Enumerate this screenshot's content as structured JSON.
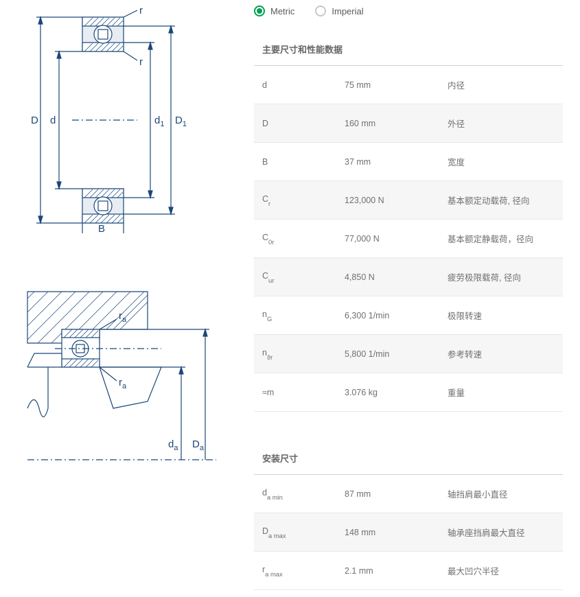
{
  "units": {
    "metric": "Metric",
    "imperial": "Imperial",
    "selected": "metric"
  },
  "sections": {
    "main": {
      "heading": "主要尺寸和性能数据",
      "rows": [
        {
          "sym": "d",
          "sub": "",
          "val": "75 mm",
          "desc": "内径",
          "alt": false
        },
        {
          "sym": "D",
          "sub": "",
          "val": "160 mm",
          "desc": "外径",
          "alt": true
        },
        {
          "sym": "B",
          "sub": "",
          "val": "37 mm",
          "desc": "宽度",
          "alt": false
        },
        {
          "sym": "C",
          "sub": "r",
          "val": "123,000 N",
          "desc": "基本额定动载荷, 径向",
          "alt": true
        },
        {
          "sym": "C",
          "sub": "0r",
          "val": "77,000 N",
          "desc": "基本额定静载荷，径向",
          "alt": false
        },
        {
          "sym": "C",
          "sub": "ur",
          "val": "4,850 N",
          "desc": "疲劳极限载荷, 径向",
          "alt": true
        },
        {
          "sym": "n",
          "sub": "G",
          "val": "6,300 1/min",
          "desc": "极限转速",
          "alt": false
        },
        {
          "sym": "n",
          "sub": "ϑr",
          "val": "5,800 1/min",
          "desc": "参考转速",
          "alt": true
        },
        {
          "sym": "≈m",
          "sub": "",
          "val": "3.076 kg",
          "desc": "重量",
          "alt": false
        }
      ]
    },
    "mounting": {
      "heading": "安装尺寸",
      "rows": [
        {
          "sym": "d",
          "sub": "a min",
          "val": "87 mm",
          "desc": "轴挡肩最小直径",
          "alt": false
        },
        {
          "sym": "D",
          "sub": "a max",
          "val": "148 mm",
          "desc": "轴承座挡肩最大直径",
          "alt": true
        },
        {
          "sym": "r",
          "sub": "a max",
          "val": "2.1 mm",
          "desc": "最大凹穴半径",
          "alt": false
        }
      ]
    }
  },
  "diagram_labels": {
    "d1_D": "D",
    "d1_d": "d",
    "d1_d1": "d",
    "d1_d1s": "1",
    "d1_D1": "D",
    "d1_D1s": "1",
    "d1_B": "B",
    "d1_r1": "r",
    "d1_r2": "r",
    "d2_ra1": "r",
    "d2_ra1s": "a",
    "d2_ra2": "r",
    "d2_ra2s": "a",
    "d2_da": "d",
    "d2_das": "a",
    "d2_Da": "D",
    "d2_Das": "a"
  },
  "colors": {
    "accent": "#00a050",
    "diagram_stroke": "#1a477a",
    "text": "#5a5a5a",
    "row_alt": "#f6f6f6",
    "border": "#e8e8e8"
  }
}
